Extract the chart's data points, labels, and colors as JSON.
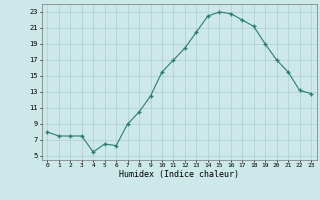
{
  "x": [
    0,
    1,
    2,
    3,
    4,
    5,
    6,
    7,
    8,
    9,
    10,
    11,
    12,
    13,
    14,
    15,
    16,
    17,
    18,
    19,
    20,
    21,
    22,
    23
  ],
  "y": [
    8.0,
    7.5,
    7.5,
    7.5,
    5.5,
    6.5,
    6.3,
    9.0,
    10.5,
    12.5,
    15.5,
    17.0,
    18.5,
    20.5,
    22.5,
    23.0,
    22.8,
    22.0,
    21.2,
    19.0,
    17.0,
    15.5,
    13.2,
    12.8
  ],
  "xlabel": "Humidex (Indice chaleur)",
  "line_color": "#2e7d6e",
  "marker_color": "#2e7d6e",
  "bg_color": "#cce8e8",
  "grid_color": "#afd0d0",
  "xlim": [
    -0.5,
    23.5
  ],
  "ylim": [
    4.5,
    24.0
  ],
  "yticks": [
    5,
    7,
    9,
    11,
    13,
    15,
    17,
    19,
    21,
    23
  ],
  "xticks": [
    0,
    1,
    2,
    3,
    4,
    5,
    6,
    7,
    8,
    9,
    10,
    11,
    12,
    13,
    14,
    15,
    16,
    17,
    18,
    19,
    20,
    21,
    22,
    23
  ]
}
